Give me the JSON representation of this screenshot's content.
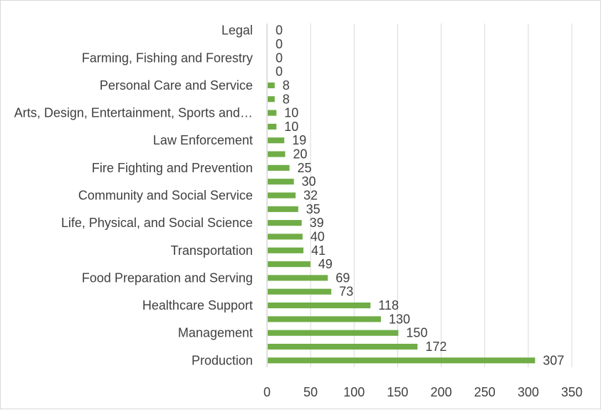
{
  "chart_data": {
    "type": "bar",
    "orientation": "horizontal",
    "categories": [
      "Legal",
      "",
      "Farming, Fishing and Forestry",
      "",
      "Personal Care and Service",
      "",
      "Arts, Design, Entertainment, Sports and…",
      "",
      "Law Enforcement",
      "",
      "Fire Fighting and Prevention",
      "",
      "Community and Social Service",
      "",
      "Life, Physical, and Social Science",
      "",
      "Transportation",
      "",
      "Food Preparation and Serving",
      "",
      "Healthcare Support",
      "",
      "Management",
      "",
      "Production"
    ],
    "values": [
      0,
      0,
      0,
      0,
      8,
      8,
      10,
      10,
      19,
      20,
      25,
      30,
      32,
      35,
      39,
      40,
      41,
      49,
      69,
      73,
      118,
      130,
      150,
      172,
      307
    ],
    "value_labels": [
      "0",
      "0",
      "0",
      "0",
      "8",
      "8",
      "10",
      "10",
      "19",
      "20",
      "25",
      "30",
      "32",
      "35",
      "39",
      "40",
      "41",
      "49",
      "69",
      "73",
      "118",
      "130",
      "150",
      "172",
      "307"
    ],
    "xlim": [
      0,
      350
    ],
    "x_ticks": [
      0,
      50,
      100,
      150,
      200,
      250,
      300,
      350
    ],
    "x_tick_labels": [
      "0",
      "50",
      "100",
      "150",
      "200",
      "250",
      "300",
      "350"
    ],
    "grid": "vertical",
    "bar_color": "#70ad47",
    "title": "",
    "xlabel": "",
    "ylabel": ""
  }
}
